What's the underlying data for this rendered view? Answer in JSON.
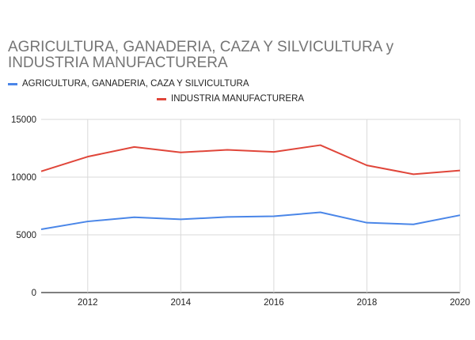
{
  "chart_data": {
    "type": "line",
    "title": "AGRICULTURA, GANADERIA, CAZA Y SILVICULTURA y INDUSTRIA MANUFACTURERA",
    "xlabel": "",
    "ylabel": "",
    "x": [
      2011,
      2012,
      2013,
      2014,
      2015,
      2016,
      2017,
      2018,
      2019,
      2020
    ],
    "xlim": [
      2011,
      2020
    ],
    "xticks": [
      2012,
      2014,
      2016,
      2018,
      2020
    ],
    "ylim": [
      0,
      15000
    ],
    "yticks": [
      0,
      5000,
      10000,
      15000
    ],
    "grid": true,
    "legend_position": "top",
    "series": [
      {
        "name": "AGRICULTURA, GANADERIA, CAZA Y SILVICULTURA",
        "color": "#4a86e8",
        "values": [
          5480,
          6160,
          6520,
          6340,
          6550,
          6610,
          6950,
          6050,
          5910,
          6700
        ]
      },
      {
        "name": "INDUSTRIA MANUFACTURERA",
        "color": "#e0463a",
        "values": [
          10500,
          11770,
          12610,
          12140,
          12360,
          12180,
          12770,
          11020,
          10250,
          10570
        ]
      }
    ]
  }
}
